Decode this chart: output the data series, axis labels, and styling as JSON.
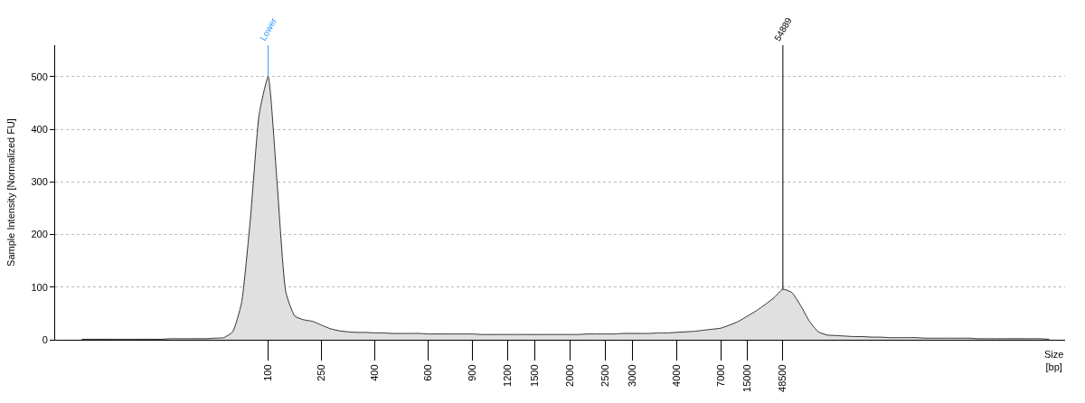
{
  "chart_data": {
    "type": "area",
    "xlabel": "Size [bp]",
    "ylabel": "Sample Intensity [Normalized FU]",
    "categories": [
      null,
      null,
      null,
      null,
      null,
      null,
      null,
      null,
      null,
      null,
      null,
      null,
      null,
      null,
      null,
      null,
      null,
      null,
      null,
      null,
      null,
      "100",
      null,
      null,
      null,
      null,
      null,
      "250",
      null,
      null,
      null,
      null,
      null,
      "400",
      null,
      null,
      null,
      null,
      null,
      "600",
      null,
      null,
      null,
      null,
      "900",
      null,
      null,
      null,
      "1200",
      null,
      null,
      "1500",
      null,
      null,
      null,
      "2000",
      null,
      null,
      null,
      "2500",
      null,
      null,
      "3000",
      null,
      null,
      null,
      null,
      "4000",
      null,
      null,
      null,
      null,
      "7000",
      null,
      null,
      "15000",
      null,
      null,
      null,
      "48500",
      null,
      null,
      null,
      null,
      null,
      null,
      null,
      null,
      null,
      null,
      null,
      null,
      null,
      null,
      null,
      null,
      null,
      null,
      null,
      null,
      null,
      null,
      null,
      null,
      null,
      null,
      null,
      null,
      null,
      null
    ],
    "series": [
      {
        "color": "#e0e0e0",
        "values": [
          1,
          1,
          1,
          1,
          1,
          1,
          1,
          1,
          1,
          1,
          2,
          2,
          2,
          2,
          2,
          3,
          4,
          15,
          70,
          230,
          430,
          500,
          300,
          90,
          45,
          38,
          35,
          28,
          21,
          17,
          15,
          14,
          14,
          13,
          13,
          12,
          12,
          12,
          12,
          11,
          11,
          11,
          11,
          11,
          11,
          10,
          10,
          10,
          10,
          10,
          10,
          10,
          10,
          10,
          10,
          10,
          10,
          11,
          11,
          11,
          11,
          12,
          12,
          12,
          12,
          13,
          13,
          14,
          15,
          16,
          18,
          20,
          22,
          28,
          35,
          45,
          55,
          67,
          80,
          96,
          90,
          65,
          35,
          15,
          9,
          8,
          7,
          6,
          6,
          5,
          5,
          4,
          4,
          4,
          4,
          3,
          3,
          3,
          3,
          3,
          3,
          2,
          2,
          2,
          2,
          2,
          2,
          2,
          2,
          1
        ]
      }
    ],
    "ylim": [
      0,
      560
    ],
    "yticks": [
      0,
      100,
      200,
      300,
      400,
      500
    ],
    "grid": "y",
    "annotations": [
      {
        "text": "Lower",
        "x": "100",
        "y": 500
      },
      {
        "text": "54889",
        "x": "48500",
        "y": 96
      }
    ]
  }
}
